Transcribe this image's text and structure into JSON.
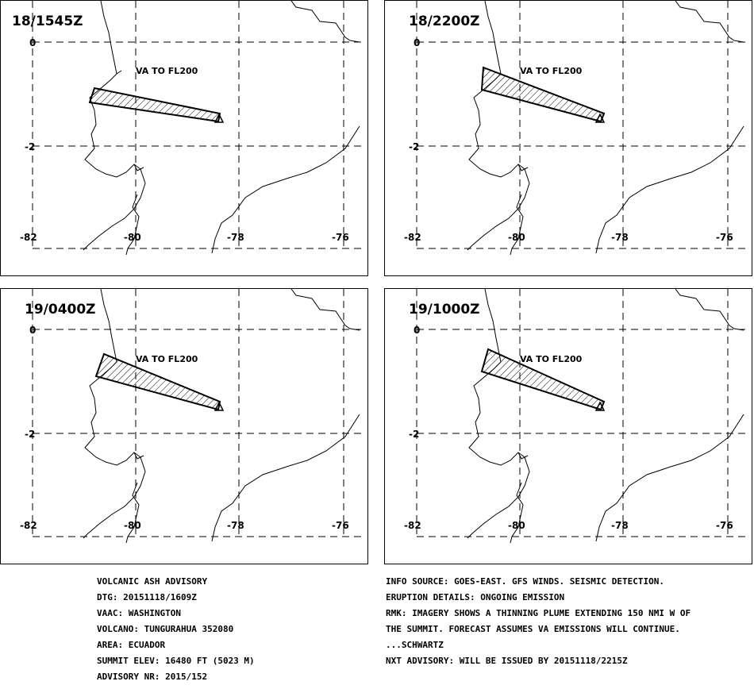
{
  "panels": [
    {
      "title": "18/1545Z",
      "label": "VA TO FL200"
    },
    {
      "title": "18/2200Z",
      "label": "VA TO FL200"
    },
    {
      "title": "19/0400Z",
      "label": "VA TO FL200"
    },
    {
      "title": "19/1000Z",
      "label": "VA TO FL200"
    }
  ],
  "axis": {
    "lat_ticks": [
      "0",
      "-2"
    ],
    "lon_ticks": [
      "-82",
      "-80",
      "-78",
      "-76"
    ]
  },
  "advisory_left": [
    "VOLCANIC ASH ADVISORY",
    "DTG: 20151118/1609Z",
    "VAAC: WASHINGTON",
    "VOLCANO: TUNGURAHUA 352080",
    "AREA: ECUADOR",
    "SUMMIT ELEV: 16480 FT (5023 M)",
    "ADVISORY NR: 2015/152"
  ],
  "advisory_right": [
    "INFO SOURCE: GOES-EAST. GFS WINDS. SEISMIC DETECTION.",
    "ERUPTION DETAILS: ONGOING EMISSION",
    "RMK: IMAGERY SHOWS A THINNING PLUME EXTENDING 150 NMI W OF",
    "THE SUMMIT. FORECAST ASSUMES VA EMISSIONS WILL CONTINUE.",
    "...SCHWARTZ",
    "NXT ADVISORY: WILL BE ISSUED BY 20151118/2215Z"
  ]
}
